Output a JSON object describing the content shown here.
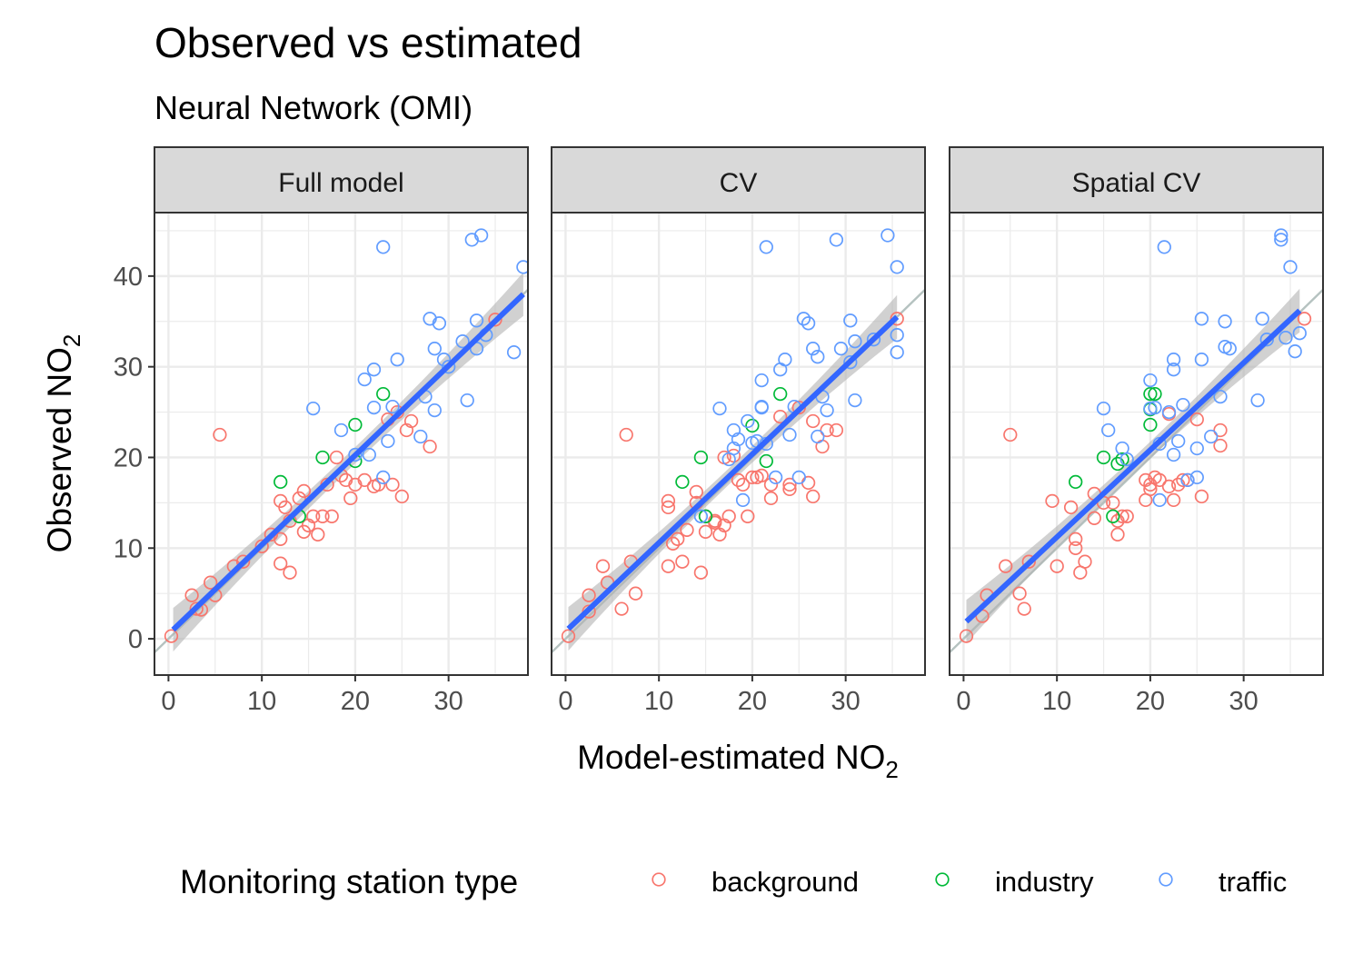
{
  "title": "Observed vs estimated",
  "subtitle": "Neural Network (OMI)",
  "colors": {
    "background": "#F8766D",
    "industry": "#00BA38",
    "traffic": "#619CFF",
    "fit": "#3366FF",
    "band": "#b3b3b3",
    "identity": "#b5c2c0"
  },
  "chart_data": {
    "type": "scatter",
    "xlabel": {
      "main": "Model-estimated NO",
      "sub": "2"
    },
    "ylabel": {
      "main": "Observed NO",
      "sub": "2"
    },
    "xlim": [
      -1.5,
      38.5
    ],
    "ylim": [
      -4,
      47
    ],
    "xticks": [
      0,
      10,
      20,
      30
    ],
    "yticks": [
      0,
      10,
      20,
      30,
      40
    ],
    "legend": {
      "title": "Monitoring station type",
      "position": "bottom",
      "labels": [
        "background",
        "industry",
        "traffic"
      ]
    },
    "panels": [
      {
        "label": "Full model",
        "fit": {
          "x": [
            0.5,
            38
          ],
          "y": [
            1.0,
            38.0
          ]
        },
        "points": {
          "background": [
            [
              0.3,
              0.3
            ],
            [
              2.5,
              4.8
            ],
            [
              3,
              3.3
            ],
            [
              3.5,
              3.2
            ],
            [
              4.5,
              6.2
            ],
            [
              5,
              4.8
            ],
            [
              5.5,
              22.5
            ],
            [
              7,
              8
            ],
            [
              8,
              8.5
            ],
            [
              10,
              10.2
            ],
            [
              11,
              11.5
            ],
            [
              12,
              15.2
            ],
            [
              12,
              8.3
            ],
            [
              12.5,
              14.5
            ],
            [
              12,
              11
            ],
            [
              13,
              7.3
            ],
            [
              13,
              13
            ],
            [
              14,
              15.5
            ],
            [
              14.5,
              16.3
            ],
            [
              14.5,
              11.8
            ],
            [
              15,
              12.5
            ],
            [
              15.5,
              13.5
            ],
            [
              16,
              11.5
            ],
            [
              16.5,
              13.5
            ],
            [
              17,
              17
            ],
            [
              17.5,
              13.5
            ],
            [
              18,
              20
            ],
            [
              18.5,
              18
            ],
            [
              19,
              17.5
            ],
            [
              19.5,
              15.5
            ],
            [
              20,
              17
            ],
            [
              21,
              17.5
            ],
            [
              22,
              16.8
            ],
            [
              22.5,
              17
            ],
            [
              23.5,
              24.2
            ],
            [
              24,
              17
            ],
            [
              24.5,
              25
            ],
            [
              25,
              15.7
            ],
            [
              25.5,
              23
            ],
            [
              26,
              24
            ],
            [
              28,
              21.2
            ],
            [
              35,
              35.2
            ]
          ],
          "industry": [
            [
              12,
              17.3
            ],
            [
              14,
              13.5
            ],
            [
              16.5,
              20
            ],
            [
              20,
              23.6
            ],
            [
              20,
              19.6
            ],
            [
              23,
              27
            ]
          ],
          "traffic": [
            [
              15.5,
              25.4
            ],
            [
              18.5,
              23
            ],
            [
              20,
              20.3
            ],
            [
              21,
              28.6
            ],
            [
              21.5,
              20.3
            ],
            [
              22,
              29.7
            ],
            [
              22,
              25.5
            ],
            [
              23,
              43.2
            ],
            [
              23,
              17.8
            ],
            [
              23.5,
              21.8
            ],
            [
              24,
              25.6
            ],
            [
              24.5,
              30.8
            ],
            [
              27,
              22.3
            ],
            [
              27.5,
              26.7
            ],
            [
              28,
              35.3
            ],
            [
              28.5,
              25.2
            ],
            [
              28.5,
              32
            ],
            [
              29,
              34.8
            ],
            [
              29.5,
              30.8
            ],
            [
              30,
              30
            ],
            [
              31.5,
              32.8
            ],
            [
              32,
              26.3
            ],
            [
              32.5,
              44
            ],
            [
              33,
              35.1
            ],
            [
              33,
              32
            ],
            [
              33.5,
              44.5
            ],
            [
              34,
              33.5
            ],
            [
              37,
              31.6
            ],
            [
              38,
              41
            ]
          ]
        }
      },
      {
        "label": "CV",
        "fit": {
          "x": [
            0.3,
            35.5
          ],
          "y": [
            1.1,
            35.5
          ]
        },
        "points": {
          "background": [
            [
              0.3,
              0.3
            ],
            [
              2.5,
              4.8
            ],
            [
              2.5,
              3
            ],
            [
              4,
              8
            ],
            [
              4.5,
              6.2
            ],
            [
              6,
              3.3
            ],
            [
              6.5,
              22.5
            ],
            [
              7,
              8.5
            ],
            [
              7.5,
              5
            ],
            [
              11,
              15.2
            ],
            [
              11,
              14.5
            ],
            [
              11,
              8
            ],
            [
              11.5,
              10.5
            ],
            [
              12,
              11
            ],
            [
              12.5,
              8.5
            ],
            [
              13,
              12
            ],
            [
              14,
              15
            ],
            [
              14,
              16.2
            ],
            [
              14.5,
              7.3
            ],
            [
              15,
              11.8
            ],
            [
              15,
              13.5
            ],
            [
              16,
              12.8
            ],
            [
              16,
              13
            ],
            [
              16.5,
              11.5
            ],
            [
              17,
              12.5
            ],
            [
              17,
              20
            ],
            [
              17.5,
              13.5
            ],
            [
              18,
              20.2
            ],
            [
              18.5,
              17.5
            ],
            [
              19,
              17
            ],
            [
              19.5,
              13.5
            ],
            [
              20,
              17.8
            ],
            [
              20.5,
              17.8
            ],
            [
              21,
              18
            ],
            [
              22,
              17
            ],
            [
              22,
              15.5
            ],
            [
              23,
              24.5
            ],
            [
              24,
              17
            ],
            [
              24,
              16.5
            ],
            [
              25,
              25.5
            ],
            [
              26,
              17.2
            ],
            [
              26.5,
              15.7
            ],
            [
              26.5,
              24
            ],
            [
              27.5,
              21.2
            ],
            [
              28,
              23
            ],
            [
              29,
              23
            ],
            [
              35.5,
              35.3
            ]
          ],
          "industry": [
            [
              12.5,
              17.3
            ],
            [
              14.5,
              20
            ],
            [
              15,
              13.5
            ],
            [
              20,
              23.5
            ],
            [
              21.5,
              19.6
            ],
            [
              23,
              27
            ]
          ],
          "traffic": [
            [
              14.5,
              13.5
            ],
            [
              16.5,
              25.4
            ],
            [
              17.5,
              19.8
            ],
            [
              18,
              21
            ],
            [
              18,
              23
            ],
            [
              18.5,
              22
            ],
            [
              19,
              15.3
            ],
            [
              19.5,
              24
            ],
            [
              20,
              21.6
            ],
            [
              20.5,
              21.8
            ],
            [
              21,
              25.5
            ],
            [
              21,
              25.6
            ],
            [
              21,
              28.5
            ],
            [
              21.5,
              43.2
            ],
            [
              21.5,
              21.5
            ],
            [
              22.5,
              17.8
            ],
            [
              23,
              29.7
            ],
            [
              23.5,
              30.8
            ],
            [
              24,
              22.5
            ],
            [
              24.5,
              25.6
            ],
            [
              25,
              17.8
            ],
            [
              25.5,
              35.3
            ],
            [
              26,
              34.8
            ],
            [
              26.5,
              32
            ],
            [
              27,
              22.3
            ],
            [
              27,
              31.1
            ],
            [
              27.5,
              26.7
            ],
            [
              28,
              25.2
            ],
            [
              29,
              44
            ],
            [
              29.5,
              32
            ],
            [
              30.5,
              35.1
            ],
            [
              30.5,
              30.5
            ],
            [
              31,
              26.3
            ],
            [
              31,
              32.8
            ],
            [
              33,
              33
            ],
            [
              34.5,
              44.5
            ],
            [
              35.5,
              41
            ],
            [
              35.5,
              33.5
            ],
            [
              35.5,
              31.6
            ]
          ]
        }
      },
      {
        "label": "Spatial CV",
        "fit": {
          "x": [
            0.3,
            36
          ],
          "y": [
            1.9,
            36.2
          ]
        },
        "points": {
          "background": [
            [
              0.3,
              0.3
            ],
            [
              2,
              2.5
            ],
            [
              2.5,
              4.8
            ],
            [
              4.5,
              8
            ],
            [
              5,
              22.5
            ],
            [
              6,
              5
            ],
            [
              6.5,
              3.3
            ],
            [
              7,
              8.5
            ],
            [
              9.5,
              15.2
            ],
            [
              10,
              8
            ],
            [
              11.5,
              14.5
            ],
            [
              12,
              11
            ],
            [
              12,
              10
            ],
            [
              12.5,
              7.3
            ],
            [
              13,
              8.5
            ],
            [
              14,
              16
            ],
            [
              14,
              13.3
            ],
            [
              15,
              15
            ],
            [
              16,
              15
            ],
            [
              16.5,
              11.5
            ],
            [
              16.5,
              13
            ],
            [
              17,
              13.5
            ],
            [
              17.5,
              13.5
            ],
            [
              19.5,
              17.5
            ],
            [
              19.5,
              15.3
            ],
            [
              20,
              16.5
            ],
            [
              20,
              17
            ],
            [
              20.5,
              17.8
            ],
            [
              21,
              17.5
            ],
            [
              22,
              16.8
            ],
            [
              22.5,
              15.3
            ],
            [
              22,
              24.8
            ],
            [
              23,
              17
            ],
            [
              23.5,
              17.5
            ],
            [
              24,
              17.5
            ],
            [
              25,
              24.2
            ],
            [
              25.5,
              15.7
            ],
            [
              27.5,
              23
            ],
            [
              27.5,
              21.3
            ],
            [
              36.5,
              35.3
            ]
          ],
          "industry": [
            [
              12,
              17.3
            ],
            [
              15,
              20
            ],
            [
              16,
              13.5
            ],
            [
              16.5,
              19.3
            ],
            [
              17,
              19.8
            ],
            [
              20,
              23.6
            ],
            [
              20,
              27
            ],
            [
              20.5,
              27
            ],
            [
              20,
              25.3
            ]
          ],
          "traffic": [
            [
              15,
              25.4
            ],
            [
              15.5,
              23
            ],
            [
              17,
              21
            ],
            [
              17.5,
              19.8
            ],
            [
              20,
              28.5
            ],
            [
              20,
              25.4
            ],
            [
              20.5,
              25.5
            ],
            [
              21,
              15.3
            ],
            [
              21,
              21.5
            ],
            [
              21.5,
              43.2
            ],
            [
              22,
              25
            ],
            [
              22.5,
              30.8
            ],
            [
              22.5,
              29.7
            ],
            [
              22.5,
              20.3
            ],
            [
              23,
              21.8
            ],
            [
              23.5,
              25.8
            ],
            [
              24,
              17.5
            ],
            [
              25,
              21
            ],
            [
              25,
              17.8
            ],
            [
              25.5,
              35.3
            ],
            [
              25.5,
              30.8
            ],
            [
              26.5,
              22.3
            ],
            [
              27.5,
              26.7
            ],
            [
              28,
              35
            ],
            [
              28,
              32.2
            ],
            [
              28.5,
              32
            ],
            [
              31.5,
              26.3
            ],
            [
              32,
              35.3
            ],
            [
              32.5,
              33
            ],
            [
              34,
              44.5
            ],
            [
              34,
              44
            ],
            [
              34.5,
              33.2
            ],
            [
              35,
              41
            ],
            [
              35.5,
              31.7
            ],
            [
              36,
              33.7
            ]
          ]
        }
      }
    ]
  }
}
